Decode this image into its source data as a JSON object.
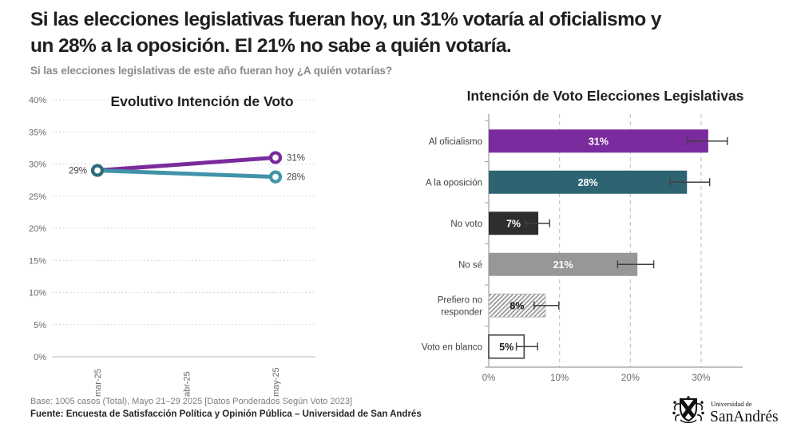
{
  "header": {
    "title_lines": [
      "Si las elecciones legislativas fueran hoy, un 31% votaría al oficialismo y",
      "un 28% a la oposición. El 21% no sabe a quién votaría."
    ],
    "subtitle": "Si las elecciones legislativas de este año fueran hoy ¿A quién votarías?"
  },
  "footer": {
    "base": "Base: 1005 casos (Total), Mayo 21–29 2025 [Datos Ponderados Según Voto 2023]",
    "source": "Fuente: Encuesta de Satisfacción Política y Opinión Pública – Universidad de San Andrés"
  },
  "logo": {
    "line1": "Universidad de",
    "line2": "SanAndrés"
  },
  "colors": {
    "purple": "#7A2B9D",
    "teal_light": "#4193A9",
    "teal_dark": "#2E6372",
    "marker_start": "#2D6B7A",
    "dark": "#2E2E2E",
    "gray_bar": "#979797",
    "hatch": "#9A9A9A",
    "outline": "#3F3F3F",
    "error": "#3F3F3F",
    "grid": "#CFCFCF",
    "axis": "#9E9E9E",
    "tick_label": "#6A6A6A",
    "data_label": "#454545",
    "chart_title": "#1F1F1F",
    "category_label": "#404040"
  },
  "chart_data": [
    {
      "type": "line",
      "title": "Evolutivo Intención de Voto",
      "x_categories": [
        "mar-25",
        "abr-25",
        "may-25"
      ],
      "y_ticks": [
        0,
        5,
        10,
        15,
        20,
        25,
        30,
        35,
        40
      ],
      "ylim": [
        0,
        40
      ],
      "grid": true,
      "start_label": "29%",
      "series": [
        {
          "name": "Al oficialismo",
          "color_key": "purple",
          "end_label": "31%",
          "points": [
            {
              "x": "mar-25",
              "y": 29
            },
            {
              "x": "may-25",
              "y": 31
            }
          ]
        },
        {
          "name": "A la oposición",
          "color_key": "teal_light",
          "end_label": "28%",
          "points": [
            {
              "x": "mar-25",
              "y": 29
            },
            {
              "x": "may-25",
              "y": 28
            }
          ]
        }
      ]
    },
    {
      "type": "bar",
      "orientation": "horizontal",
      "title": "Intención de Voto Elecciones Legislativas",
      "xlim": [
        0,
        35
      ],
      "x_ticks": [
        0,
        10,
        20,
        30
      ],
      "categories": [
        "Al oficialismo",
        "A la oposición",
        "No voto",
        "No sé",
        "Prefiero no responder",
        "Voto en blanco"
      ],
      "values": [
        31,
        28,
        7,
        21,
        8,
        5
      ],
      "value_labels": [
        "31%",
        "28%",
        "7%",
        "21%",
        "8%",
        "5%"
      ],
      "error_low": [
        28.1,
        25.6,
        5.2,
        18.2,
        6.4,
        3.9
      ],
      "error_high": [
        33.7,
        31.2,
        8.6,
        23.3,
        9.9,
        6.9
      ],
      "bar_styles": [
        {
          "fill_key": "purple",
          "label_color": "#FFFFFF"
        },
        {
          "fill_key": "teal_dark",
          "label_color": "#FFFFFF"
        },
        {
          "fill_key": "dark",
          "label_color": "#FFFFFF"
        },
        {
          "fill_key": "gray_bar",
          "label_color": "#FFFFFF"
        },
        {
          "fill_key": "hatch",
          "label_color": "#1A1A1A"
        },
        {
          "fill_key": "outline",
          "label_color": "#1A1A1A"
        }
      ]
    }
  ]
}
